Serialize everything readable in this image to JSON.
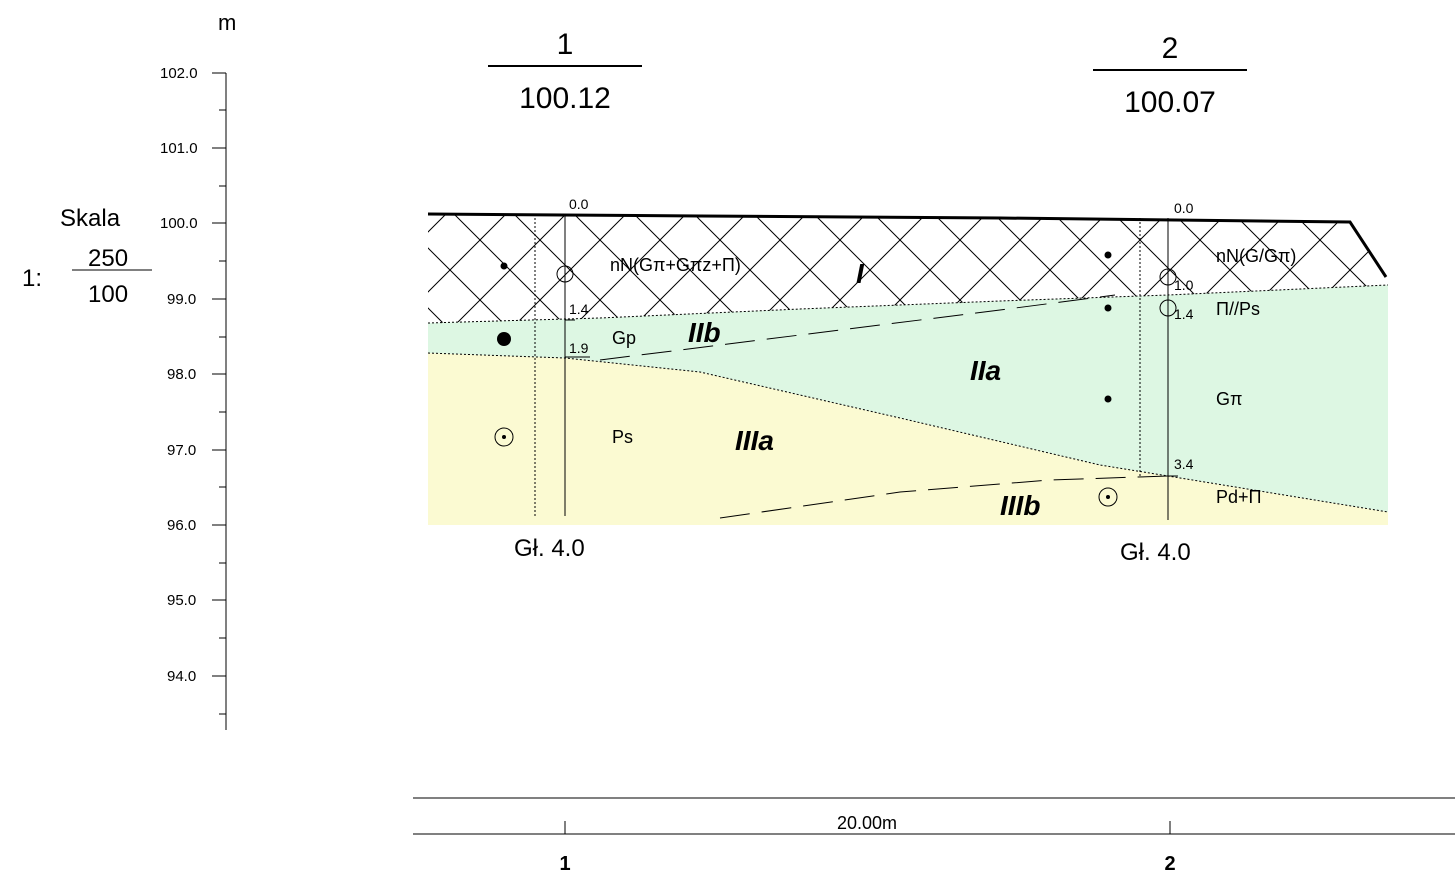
{
  "vertical_scale": {
    "unit": "m",
    "ticks": [
      "102.0",
      "101.0",
      "100.0",
      "99.0",
      "98.0",
      "97.0",
      "96.0",
      "95.0",
      "94.0"
    ]
  },
  "scale_box": {
    "title": "Skala",
    "prefix": "1:",
    "numerator": "250",
    "denominator": "100"
  },
  "boreholes": [
    {
      "number": "1",
      "elevation": "100.12",
      "depth_label": "Gł. 4.0"
    },
    {
      "number": "2",
      "elevation": "100.07",
      "depth_label": "Gł. 4.0"
    }
  ],
  "depth_marks": {
    "bh1": [
      "0.0",
      "1.4",
      "1.9"
    ],
    "bh2": [
      "0.0",
      "1.0",
      "1.4",
      "3.4"
    ]
  },
  "soil_labels": {
    "bh1": [
      "nN(Gπ+Gπz+Π)",
      "Gp",
      "Ps"
    ],
    "bh2": [
      "nN(G/Gπ)",
      "Π//Ps",
      "Gπ",
      "Pd+Π"
    ]
  },
  "zones": [
    "I",
    "IIa",
    "IIb",
    "IIIa",
    "IIIb"
  ],
  "bottom_scale": {
    "distance": "20.00m",
    "borehole_numbers": [
      "1",
      "2"
    ]
  },
  "colors": {
    "fill_layer_I": "#ffffff",
    "fill_layer_II": "#ddf7e3",
    "fill_layer_III": "#fbfad2",
    "line": "#000000"
  }
}
